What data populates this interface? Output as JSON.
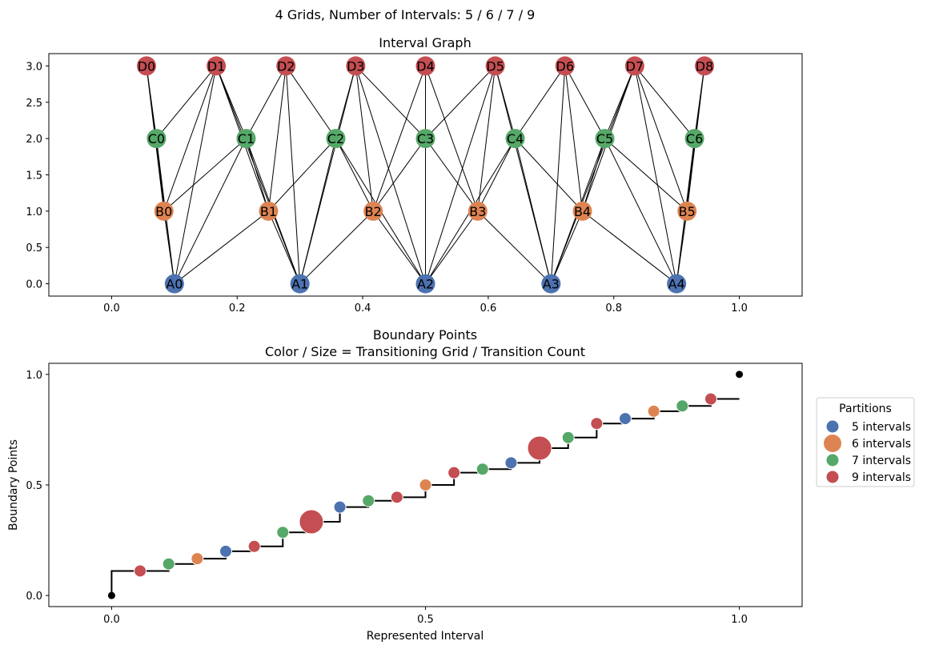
{
  "suptitle": "4 Grids, Number of Intervals: 5 / 6 / 7 / 9",
  "colors": {
    "5": "#4c72b0",
    "6": "#dd8452",
    "7": "#55a868",
    "9": "#c44e52",
    "edge": "#000000",
    "endpoint": "#000000"
  },
  "chart_data": [
    {
      "type": "network",
      "title": "Interval Graph",
      "xlim": [
        -0.1,
        1.1
      ],
      "ylim": [
        -0.17,
        3.17
      ],
      "xticks": [
        "0.0",
        "0.2",
        "0.4",
        "0.6",
        "0.8",
        "1.0"
      ],
      "xtick_values": [
        0.0,
        0.2,
        0.4,
        0.6,
        0.8,
        1.0
      ],
      "yticks": [
        "0.0",
        "0.5",
        "1.0",
        "1.5",
        "2.0",
        "2.5",
        "3.0"
      ],
      "ytick_values": [
        0.0,
        0.5,
        1.0,
        1.5,
        2.0,
        2.5,
        3.0
      ],
      "grids": [
        {
          "name": "A",
          "intervals": 5,
          "y": 0
        },
        {
          "name": "B",
          "intervals": 6,
          "y": 1
        },
        {
          "name": "C",
          "intervals": 7,
          "y": 2
        },
        {
          "name": "D",
          "intervals": 9,
          "y": 3
        }
      ]
    },
    {
      "type": "step",
      "title": "Boundary Points",
      "subtitle": "Color / Size = Transitioning Grid / Transition Count",
      "xlabel": "Represented Interval",
      "ylabel": "Boundary Points",
      "xlim": [
        -0.1,
        1.1
      ],
      "ylim": [
        -0.05,
        1.05
      ],
      "xticks": [
        "0.0",
        "0.5",
        "1.0"
      ],
      "xtick_values": [
        0.0,
        0.5,
        1.0
      ],
      "yticks": [
        "0.0",
        "0.5",
        "1.0"
      ],
      "ytick_values": [
        0.0,
        0.5,
        1.0
      ],
      "legend": {
        "title": "Partitions",
        "placement": "right, outside",
        "entries": [
          {
            "label": "5 intervals",
            "intervals": 5,
            "size": 1
          },
          {
            "label": "6 intervals",
            "intervals": 6,
            "size": 2
          },
          {
            "label": "7 intervals",
            "intervals": 7,
            "size": 1
          },
          {
            "label": "9 intervals",
            "intervals": 9,
            "size": 1
          }
        ]
      },
      "endpoints": [
        [
          0,
          0
        ],
        [
          1,
          1
        ]
      ]
    }
  ]
}
